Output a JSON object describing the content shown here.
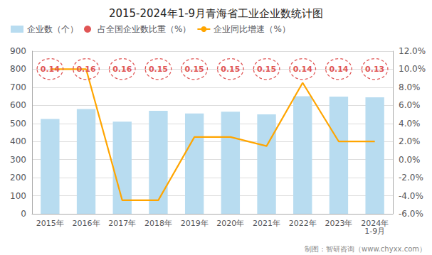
{
  "chart_data": {
    "type": "bar",
    "title": "2015-2024年1-9月青海省工业企业数统计图",
    "categories": [
      "2015年",
      "2016年",
      "2017年",
      "2018年",
      "2019年",
      "2020年",
      "2021年",
      "2022年",
      "2023年",
      "2024年\n1-9月"
    ],
    "series": [
      {
        "name": "企业数（个）",
        "type": "bar",
        "color": "#b8dcf0",
        "values": [
          525,
          580,
          510,
          570,
          555,
          565,
          550,
          650,
          648,
          645
        ]
      },
      {
        "name": "占全国企业数比重（%）",
        "type": "scatter",
        "color": "#e05555",
        "marker": "circle",
        "line_style": "dashed",
        "data_labels": true,
        "values": [
          0.14,
          0.16,
          0.16,
          0.15,
          0.15,
          0.15,
          0.15,
          0.14,
          0.14,
          0.13
        ]
      },
      {
        "name": "企业同比增速（%）",
        "type": "line",
        "axis": "y2",
        "color": "#FFA500",
        "values": [
          10.0,
          10.0,
          -4.5,
          -4.5,
          2.5,
          2.5,
          1.5,
          8.5,
          2.0,
          2.0
        ]
      }
    ],
    "ylim": [
      0,
      900
    ],
    "yticks": [
      0,
      100,
      200,
      300,
      400,
      500,
      600,
      700,
      800,
      900
    ],
    "y2lim": [
      -6.0,
      12.0
    ],
    "y2ticks": [
      {
        "value": -6.0,
        "label": "-6.0%"
      },
      {
        "value": -4.0,
        "label": "-4.0%"
      },
      {
        "value": -2.0,
        "label": "-2.0%"
      },
      {
        "value": 0.0,
        "label": "0.0%"
      },
      {
        "value": 2.0,
        "label": "2.0%"
      },
      {
        "value": 4.0,
        "label": "4.0%"
      },
      {
        "value": 6.0,
        "label": "6.0%"
      },
      {
        "value": 8.0,
        "label": "8.0%"
      },
      {
        "value": 10.0,
        "label": "10.0%"
      },
      {
        "value": 12.0,
        "label": "12.0%"
      }
    ],
    "grid": true,
    "legend": "upper left",
    "annotations": [
      "制图：智研咨询（www.chyxx.com）"
    ]
  }
}
